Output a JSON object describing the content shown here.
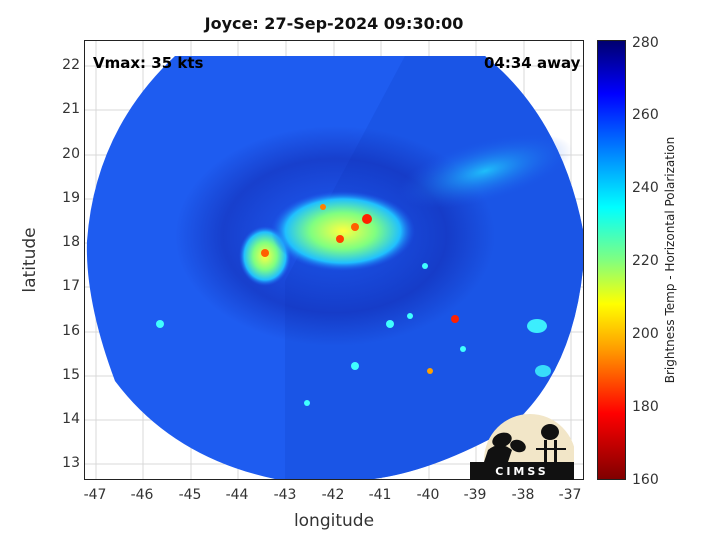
{
  "title": "Joyce: 27-Sep-2024 09:30:00",
  "vmax_label": "Vmax: 35 kts",
  "away_label": "04:34 away",
  "xlabel": "longitude",
  "ylabel": "latitude",
  "x_ticks": [
    "-47",
    "-46",
    "-45",
    "-44",
    "-43",
    "-42",
    "-41",
    "-40",
    "-39",
    "-38",
    "-37"
  ],
  "y_ticks": [
    "22",
    "21",
    "20",
    "19",
    "18",
    "17",
    "16",
    "15",
    "14",
    "13"
  ],
  "colorbar": {
    "label": "Brightness Temp - Horizontal Polarization",
    "ticks": [
      "280",
      "260",
      "240",
      "220",
      "200",
      "180",
      "160"
    ],
    "min": 160,
    "max": 280
  },
  "logo_text": "CIMSS"
}
